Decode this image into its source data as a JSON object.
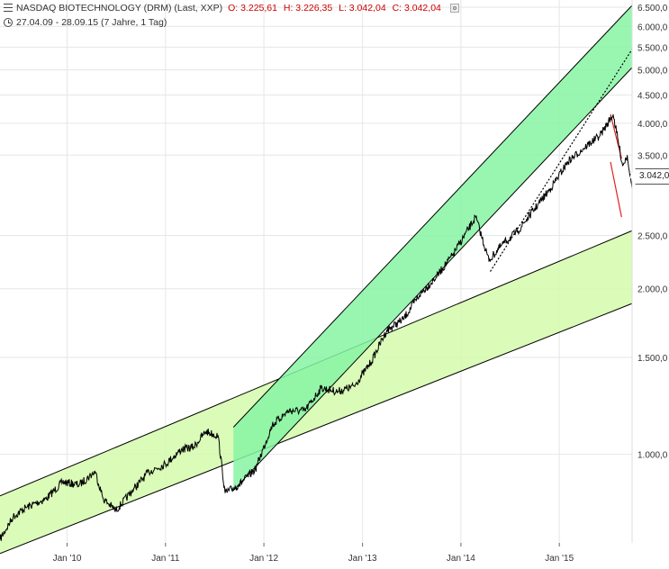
{
  "header": {
    "instrument": "NASDAQ BIOTECHNOLOGY (DRM) (Last, XXP)",
    "open": "O: 3.225,61",
    "high": "H: 3.226,35",
    "low": "L: 3.042,04",
    "close": "C: 3.042,04",
    "range": "27.04.09 - 28.09.15 (7 Jahre, 1 Tag)"
  },
  "last_price_label": "3.042,0",
  "colors": {
    "price_line": "#000000",
    "channel_steep_fill": "#86f5a3",
    "channel_flat_fill": "#d4fbab",
    "trend_red": "#e02020",
    "ohlc_text": "#cc0000",
    "grid": "#e6e6e6"
  },
  "chart_data": {
    "type": "line",
    "title": "NASDAQ BIOTECHNOLOGY (DRM) (Last, XXP)",
    "y_scale": "log",
    "ylim": [
      690,
      6700
    ],
    "xlim": [
      "2009-04-27",
      "2015-09-28"
    ],
    "x_ticks": [
      "Jan '10",
      "Jan '11",
      "Jan '12",
      "Jan '13",
      "Jan '14",
      "Jan '15"
    ],
    "x_tick_dates": [
      "2010-01-01",
      "2011-01-01",
      "2012-01-01",
      "2013-01-01",
      "2014-01-01",
      "2015-01-01"
    ],
    "y_ticks": [
      1000,
      1500,
      2000,
      2500,
      3500,
      4000,
      4500,
      5000,
      5500,
      6000,
      6500
    ],
    "y_tick_labels": [
      "1.000,0",
      "1.500,0",
      "2.000,0",
      "2.500,0",
      "3.500,0",
      "4.000,0",
      "4.500,0",
      "5.000,0",
      "5.500,0",
      "6.000,0",
      "6.500,0"
    ],
    "grid": true,
    "series": [
      {
        "x": [
          "2009-04-27",
          "2009-06-15",
          "2009-08-01",
          "2009-10-15",
          "2009-12-15",
          "2010-02-15",
          "2010-04-15",
          "2010-05-15",
          "2010-07-01",
          "2010-09-01",
          "2010-11-01",
          "2011-01-01",
          "2011-03-01",
          "2011-04-15",
          "2011-05-31",
          "2011-07-15",
          "2011-08-10",
          "2011-10-01",
          "2011-12-01",
          "2012-02-01",
          "2012-04-01",
          "2012-06-01",
          "2012-08-01",
          "2012-10-01",
          "2012-12-01",
          "2013-02-01",
          "2013-04-01",
          "2013-06-01",
          "2013-08-01",
          "2013-10-01",
          "2013-12-01",
          "2014-02-25",
          "2014-04-15",
          "2014-06-01",
          "2014-08-01",
          "2014-10-15",
          "2014-12-01",
          "2015-02-01",
          "2015-04-01",
          "2015-06-01",
          "2015-07-20",
          "2015-08-24",
          "2015-09-10",
          "2015-09-28"
        ],
        "y": [
          700,
          770,
          800,
          830,
          890,
          880,
          930,
          830,
          790,
          860,
          930,
          960,
          1020,
          1030,
          1100,
          1080,
          850,
          880,
          940,
          1130,
          1200,
          1200,
          1320,
          1300,
          1330,
          1470,
          1680,
          1760,
          1950,
          2100,
          2300,
          2700,
          2250,
          2400,
          2550,
          2850,
          3050,
          3400,
          3600,
          3800,
          4150,
          3350,
          3500,
          3042
        ]
      }
    ],
    "channels": [
      {
        "kind": "rising-channel",
        "fill": "#d4fbab",
        "x": [
          "2009-04-27",
          "2015-09-28"
        ],
        "upper": [
          840,
          2550
        ],
        "lower": [
          660,
          1880
        ]
      },
      {
        "kind": "rising-channel",
        "fill": "#86f5a3",
        "x": [
          "2011-09-10",
          "2015-09-28"
        ],
        "upper": [
          1120,
          6550
        ],
        "lower": [
          860,
          5050
        ]
      }
    ],
    "trend_lines": [
      {
        "color": "#000000",
        "style": "dotted",
        "x": [
          "2014-04-20",
          "2015-09-28"
        ],
        "y": [
          2150,
          5450
        ]
      },
      {
        "color": "#e02020",
        "style": "solid",
        "x": [
          "2015-07-10",
          "2015-08-20"
        ],
        "y": [
          4150,
          3450
        ]
      },
      {
        "color": "#e02020",
        "style": "solid",
        "x": [
          "2015-07-10",
          "2015-08-20"
        ],
        "y": [
          3400,
          2700
        ]
      }
    ]
  }
}
